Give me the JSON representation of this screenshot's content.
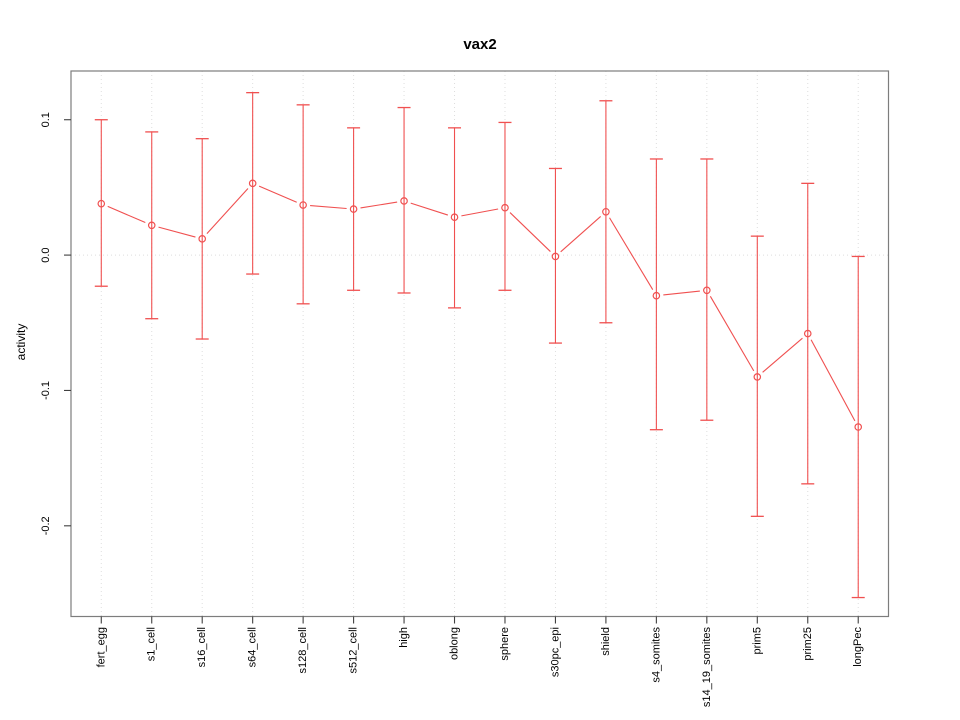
{
  "chart_data": {
    "type": "line",
    "title": "vax2",
    "xlabel": "",
    "ylabel": "activity",
    "categories": [
      "fert_egg",
      "s1_cell",
      "s16_cell",
      "s64_cell",
      "s128_cell",
      "s512_cell",
      "high",
      "oblong",
      "sphere",
      "s30pc_epi",
      "shield",
      "s4_somites",
      "s14_19_somites",
      "prim5",
      "prim25",
      "longPec"
    ],
    "series": [
      {
        "name": "vax2",
        "marker": "open-circle",
        "values": [
          0.038,
          0.022,
          0.012,
          0.053,
          0.037,
          0.034,
          0.04,
          0.028,
          0.035,
          -0.001,
          0.032,
          -0.03,
          -0.026,
          -0.09,
          -0.058,
          -0.127
        ],
        "error_lower": [
          -0.023,
          -0.047,
          -0.062,
          -0.014,
          -0.036,
          -0.026,
          -0.028,
          -0.039,
          -0.026,
          -0.065,
          -0.05,
          -0.129,
          -0.122,
          -0.193,
          -0.169,
          -0.253
        ],
        "error_upper": [
          0.1,
          0.091,
          0.086,
          0.12,
          0.111,
          0.094,
          0.109,
          0.094,
          0.098,
          0.064,
          0.114,
          0.071,
          0.071,
          0.014,
          0.053,
          -0.001
        ]
      }
    ],
    "ylim": [
      -0.267,
      0.136
    ],
    "yticks": [
      0.1,
      0.0,
      -0.1,
      -0.2
    ],
    "ytick_labels": [
      "0.1",
      "0.0",
      "-0.1",
      "-0.2"
    ],
    "legend": "none",
    "grid": {
      "vertical": "dotted line at every category",
      "horizontal": "dotted line at y=0 only"
    },
    "colors": {
      "series": "#f05050",
      "grid": "#dedede",
      "frame": "#7d7d7d",
      "tick": "#404040",
      "text": "#000000",
      "background": "#ffffff"
    }
  }
}
